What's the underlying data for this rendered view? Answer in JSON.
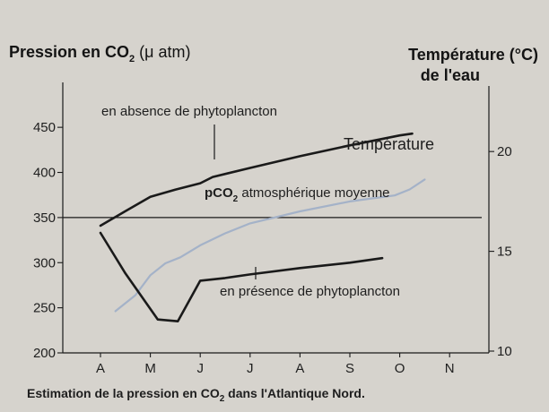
{
  "chart_data": {
    "type": "line",
    "categories": [
      "A",
      "M",
      "J",
      "J",
      "A",
      "S",
      "O",
      "N"
    ],
    "y_left": {
      "title_text": "Pression en CO",
      "title_sub": "2",
      "title_unit": " (μ atm)",
      "ticks": [
        200,
        250,
        300,
        350,
        400,
        450
      ],
      "range": [
        200,
        470
      ]
    },
    "y_right": {
      "title_line1": "Température (°C)",
      "title_line2": "de l'eau",
      "ticks": [
        10,
        15,
        20
      ],
      "range": [
        10,
        21.4
      ]
    },
    "series": [
      {
        "name": "en absence de phytoplancton",
        "axis": "left",
        "color": "#1a1a1a",
        "points": [
          [
            0.0,
            341
          ],
          [
            0.5,
            357
          ],
          [
            1.0,
            373
          ],
          [
            1.5,
            381
          ],
          [
            2.0,
            388
          ],
          [
            2.25,
            395
          ],
          [
            3.0,
            405
          ],
          [
            4.0,
            418
          ],
          [
            5.0,
            430
          ],
          [
            6.0,
            441
          ],
          [
            6.25,
            443
          ]
        ]
      },
      {
        "name": "Température",
        "axis": "right",
        "color": "#a4b2c8",
        "points": [
          [
            0.3,
            12.0
          ],
          [
            0.7,
            12.8
          ],
          [
            1.0,
            13.8
          ],
          [
            1.3,
            14.4
          ],
          [
            1.6,
            14.7
          ],
          [
            2.0,
            15.3
          ],
          [
            2.5,
            15.9
          ],
          [
            3.0,
            16.4
          ],
          [
            4.0,
            17.0
          ],
          [
            5.0,
            17.5
          ],
          [
            5.6,
            17.7
          ],
          [
            5.9,
            17.8
          ],
          [
            6.2,
            18.1
          ],
          [
            6.5,
            18.6
          ]
        ]
      },
      {
        "name": "en présence de phytoplancton",
        "axis": "left",
        "color": "#1a1a1a",
        "points": [
          [
            0.0,
            333
          ],
          [
            0.5,
            288
          ],
          [
            1.15,
            237
          ],
          [
            1.55,
            235
          ],
          [
            2.0,
            280
          ],
          [
            2.5,
            283
          ],
          [
            3.0,
            287
          ],
          [
            4.0,
            294
          ],
          [
            5.0,
            300
          ],
          [
            5.65,
            305
          ]
        ]
      }
    ],
    "reference_line": {
      "name_main": "pCO",
      "name_sub": "2",
      "name_rest": " atmosphérique moyenne",
      "y": 350,
      "axis": "left"
    },
    "caption_main": "Estimation de la pression en CO",
    "caption_sub": "2",
    "caption_rest": " dans l'Atlantique Nord."
  }
}
